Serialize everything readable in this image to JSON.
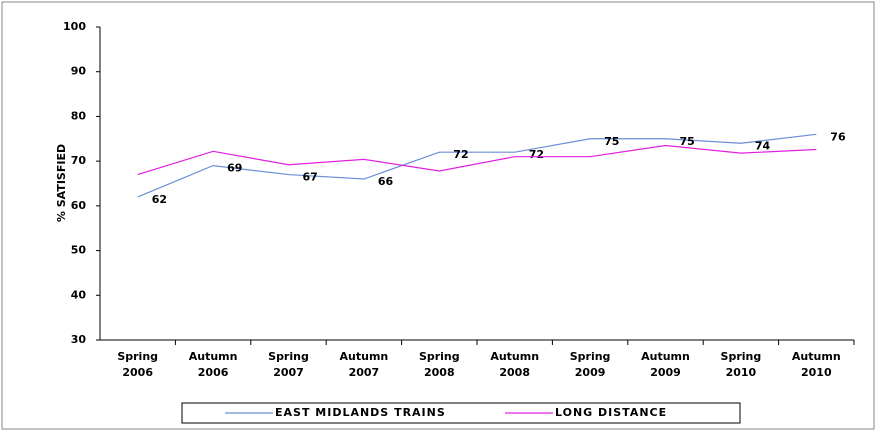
{
  "chart_data": {
    "type": "line",
    "y_label": "% SATISFIED",
    "categories": [
      "Spring 2006",
      "Autumn 2006",
      "Spring 2007",
      "Autumn 2007",
      "Spring 2008",
      "Autumn 2008",
      "Spring 2009",
      "Autumn 2009",
      "Spring 2010",
      "Autumn 2010"
    ],
    "series": [
      {
        "name": "EAST MIDLANDS TRAINS",
        "color": "#6b8fd9",
        "values": [
          62,
          69,
          67,
          66,
          72,
          72,
          75,
          75,
          74,
          76
        ],
        "show_labels": true
      },
      {
        "name": "LONG DISTANCE",
        "color": "#e020e0",
        "values": [
          67,
          72.2,
          69.2,
          70.4,
          67.8,
          71,
          71,
          73.5,
          71.8,
          72.6
        ],
        "show_labels": false
      }
    ],
    "ylim": [
      30,
      100
    ],
    "yticks": [
      30,
      40,
      50,
      60,
      70,
      80,
      90,
      100
    ],
    "grid": false
  }
}
